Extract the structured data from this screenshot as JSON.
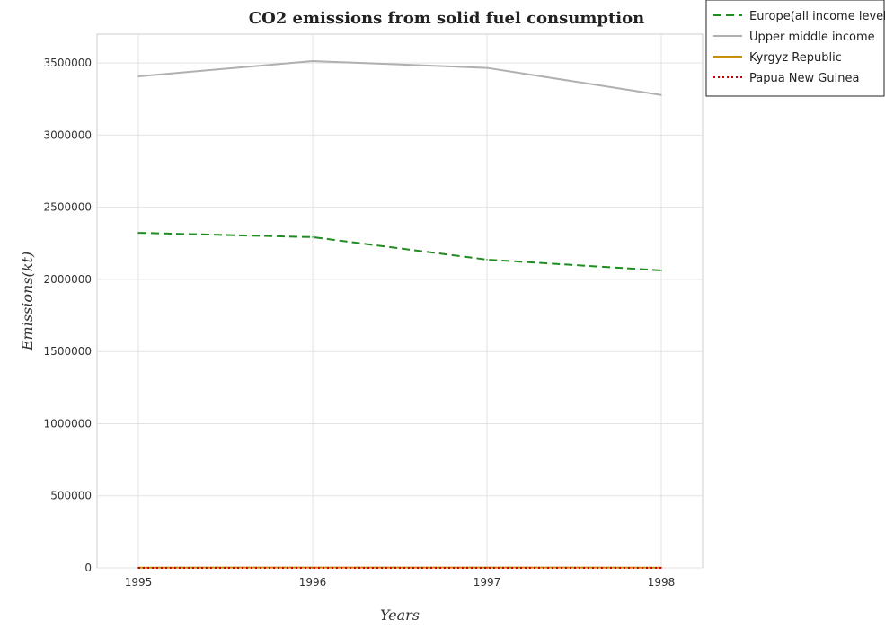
{
  "chart_data": {
    "type": "line",
    "title": "CO2 emissions from solid fuel consumption",
    "xlabel": "Years",
    "ylabel": "Emissions(kt)",
    "x": [
      "1995",
      "1996",
      "1997",
      "1998"
    ],
    "ylim": [
      0,
      3700000
    ],
    "yticks": [
      0,
      500000,
      1000000,
      1500000,
      2000000,
      2500000,
      3000000,
      3500000
    ],
    "ytick_labels": [
      "0",
      "500000",
      "1000000",
      "1500000",
      "2000000",
      "2500000",
      "3000000",
      "3500000"
    ],
    "grid": true,
    "legend_position": "top-right",
    "series": [
      {
        "name": "Europe(all income levels)",
        "color": "#228b22",
        "dash": "dashed",
        "values": [
          2323000,
          2293000,
          2137000,
          2062000
        ]
      },
      {
        "name": "Upper middle income",
        "color": "#b0b0b0",
        "dash": "solid",
        "values": [
          3407000,
          3513000,
          3466000,
          3278000
        ]
      },
      {
        "name": "Kyrgyz Republic",
        "color": "#c8900a",
        "dash": "solid",
        "values": [
          1800,
          2100,
          2200,
          1900
        ]
      },
      {
        "name": "Papua New Guinea",
        "color": "#cc0000",
        "dash": "dotted",
        "values": [
          0,
          0,
          0,
          0
        ]
      }
    ]
  }
}
